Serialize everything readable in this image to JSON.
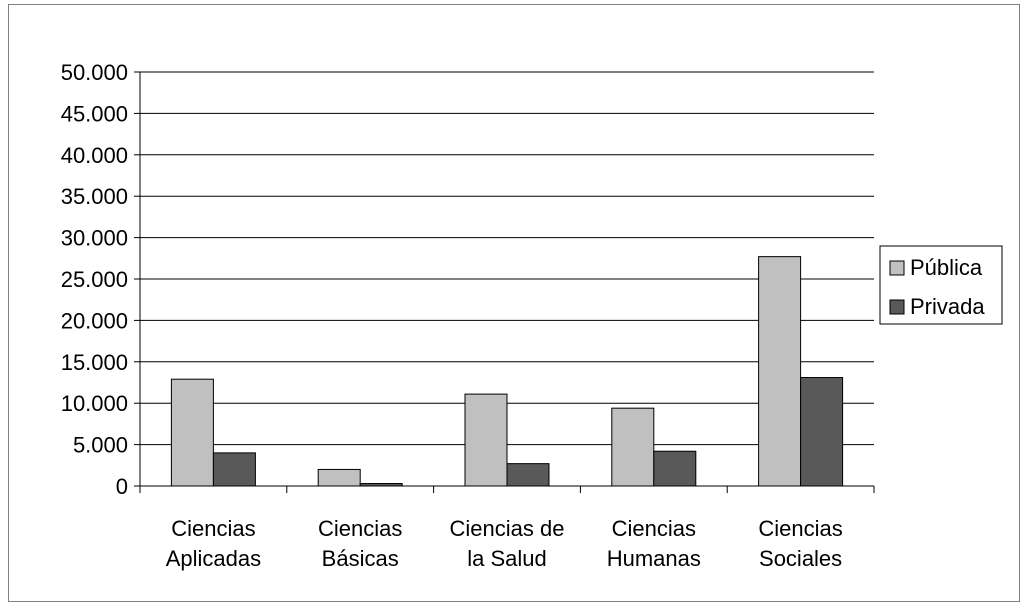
{
  "chart_data": {
    "type": "bar",
    "categories": [
      [
        "Ciencias",
        "Aplicadas"
      ],
      [
        "Ciencias",
        "Básicas"
      ],
      [
        "Ciencias de",
        "la Salud"
      ],
      [
        "Ciencias",
        "Humanas"
      ],
      [
        "Ciencias",
        "Sociales"
      ]
    ],
    "series": [
      {
        "name": "Pública",
        "values": [
          12900,
          2000,
          11100,
          9400,
          27700
        ]
      },
      {
        "name": "Privada",
        "values": [
          4000,
          300,
          2700,
          4200,
          13100
        ]
      }
    ],
    "ylim": [
      0,
      50000
    ],
    "ytick_step": 5000,
    "ytick_labels": [
      "0",
      "5.000",
      "10.000",
      "15.000",
      "20.000",
      "25.000",
      "30.000",
      "35.000",
      "40.000",
      "45.000",
      "50.000"
    ],
    "grid": true,
    "legend_position": "right",
    "colors": {
      "Pública": "#c0c0c0",
      "Privada": "#595959",
      "grid": "#000000",
      "frame": "#808080"
    }
  }
}
